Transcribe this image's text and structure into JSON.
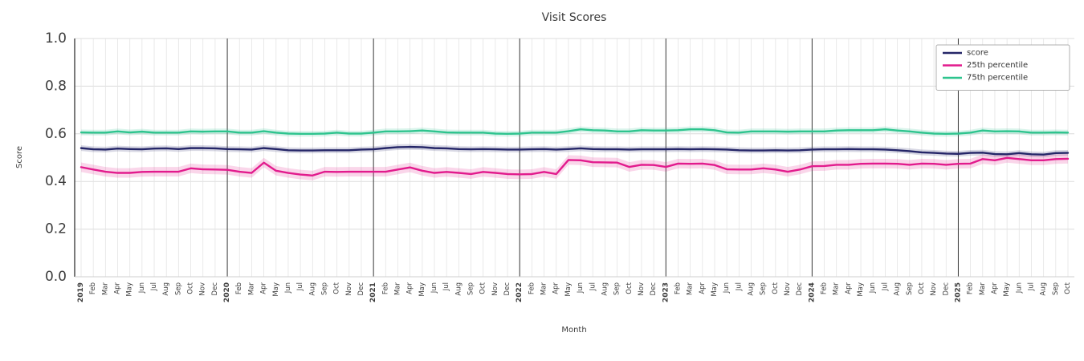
{
  "chart_data": {
    "type": "line",
    "title": "Visit Scores",
    "xlabel": "Month",
    "ylabel": "Score",
    "ylim": [
      0.0,
      1.0
    ],
    "yticks": [
      0.0,
      0.2,
      0.4,
      0.6,
      0.8,
      1.0
    ],
    "grid": true,
    "legend_position": "upper right",
    "year_separators": [
      "2020",
      "2021",
      "2022",
      "2023",
      "2024",
      "2025"
    ],
    "x_labels": [
      "2019",
      "Feb",
      "Mar",
      "Apr",
      "May",
      "Jun",
      "Jul",
      "Aug",
      "Sep",
      "Oct",
      "Nov",
      "Dec",
      "2020",
      "Feb",
      "Mar",
      "Apr",
      "May",
      "Jun",
      "Jul",
      "Aug",
      "Sep",
      "Oct",
      "Nov",
      "Dec",
      "2021",
      "Feb",
      "Mar",
      "Apr",
      "May",
      "Jun",
      "Jul",
      "Aug",
      "Sep",
      "Oct",
      "Nov",
      "Dec",
      "2022",
      "Feb",
      "Mar",
      "Apr",
      "May",
      "Jun",
      "Jul",
      "Aug",
      "Sep",
      "Oct",
      "Nov",
      "Dec",
      "2023",
      "Feb",
      "Mar",
      "Apr",
      "May",
      "Jun",
      "Jul",
      "Aug",
      "Sep",
      "Oct",
      "Nov",
      "Dec",
      "2024",
      "Feb",
      "Mar",
      "Apr",
      "May",
      "Jun",
      "Jul",
      "Aug",
      "Sep",
      "Oct",
      "Nov",
      "Dec",
      "2025",
      "Feb",
      "Mar",
      "Apr",
      "May",
      "Jun",
      "Jul",
      "Aug",
      "Sep",
      "Oct"
    ],
    "series": [
      {
        "name": "score",
        "color": "#252668",
        "band_halfwidth": 0.012,
        "values": [
          0.54,
          0.535,
          0.534,
          0.538,
          0.536,
          0.535,
          0.538,
          0.539,
          0.536,
          0.54,
          0.54,
          0.539,
          0.536,
          0.535,
          0.534,
          0.54,
          0.536,
          0.531,
          0.53,
          0.53,
          0.531,
          0.531,
          0.531,
          0.534,
          0.535,
          0.54,
          0.544,
          0.545,
          0.544,
          0.54,
          0.539,
          0.536,
          0.535,
          0.536,
          0.535,
          0.534,
          0.534,
          0.535,
          0.536,
          0.534,
          0.536,
          0.539,
          0.536,
          0.535,
          0.535,
          0.534,
          0.535,
          0.535,
          0.535,
          0.536,
          0.535,
          0.536,
          0.535,
          0.534,
          0.531,
          0.53,
          0.53,
          0.531,
          0.53,
          0.531,
          0.534,
          0.535,
          0.535,
          0.536,
          0.535,
          0.535,
          0.534,
          0.531,
          0.527,
          0.522,
          0.52,
          0.517,
          0.516,
          0.52,
          0.521,
          0.515,
          0.514,
          0.519,
          0.514,
          0.513,
          0.519,
          0.52
        ]
      },
      {
        "name": "25th percentile",
        "color": "#e21b8d",
        "band_halfwidth": 0.02,
        "values": [
          0.46,
          0.45,
          0.441,
          0.436,
          0.436,
          0.44,
          0.441,
          0.441,
          0.441,
          0.455,
          0.451,
          0.45,
          0.449,
          0.441,
          0.436,
          0.479,
          0.445,
          0.436,
          0.429,
          0.425,
          0.441,
          0.44,
          0.441,
          0.441,
          0.441,
          0.441,
          0.45,
          0.459,
          0.445,
          0.436,
          0.44,
          0.436,
          0.431,
          0.44,
          0.436,
          0.431,
          0.43,
          0.431,
          0.44,
          0.431,
          0.49,
          0.489,
          0.481,
          0.48,
          0.479,
          0.461,
          0.47,
          0.469,
          0.461,
          0.475,
          0.474,
          0.475,
          0.469,
          0.451,
          0.45,
          0.45,
          0.455,
          0.45,
          0.441,
          0.45,
          0.464,
          0.465,
          0.47,
          0.47,
          0.474,
          0.475,
          0.475,
          0.474,
          0.47,
          0.475,
          0.474,
          0.47,
          0.474,
          0.475,
          0.494,
          0.489,
          0.499,
          0.494,
          0.489,
          0.489,
          0.494,
          0.495
        ]
      },
      {
        "name": "75th percentile",
        "color": "#2ec48e",
        "band_halfwidth": 0.012,
        "values": [
          0.606,
          0.605,
          0.605,
          0.61,
          0.606,
          0.609,
          0.605,
          0.605,
          0.605,
          0.61,
          0.609,
          0.61,
          0.61,
          0.605,
          0.605,
          0.611,
          0.605,
          0.601,
          0.6,
          0.6,
          0.601,
          0.605,
          0.601,
          0.601,
          0.605,
          0.61,
          0.61,
          0.611,
          0.614,
          0.61,
          0.606,
          0.605,
          0.605,
          0.605,
          0.601,
          0.6,
          0.601,
          0.605,
          0.605,
          0.605,
          0.611,
          0.619,
          0.615,
          0.614,
          0.61,
          0.61,
          0.615,
          0.614,
          0.614,
          0.615,
          0.619,
          0.619,
          0.615,
          0.606,
          0.605,
          0.61,
          0.61,
          0.61,
          0.609,
          0.61,
          0.61,
          0.61,
          0.614,
          0.615,
          0.615,
          0.615,
          0.619,
          0.614,
          0.61,
          0.605,
          0.601,
          0.6,
          0.601,
          0.605,
          0.614,
          0.61,
          0.611,
          0.61,
          0.605,
          0.605,
          0.606,
          0.605
        ]
      }
    ],
    "colors": {
      "grid": "#dcdcdc",
      "grid_minor": "#e4e4e4",
      "year_line": "#3a3a3a",
      "axis_text": "#3d3d3d",
      "legend_border": "#b0b0b0"
    }
  }
}
